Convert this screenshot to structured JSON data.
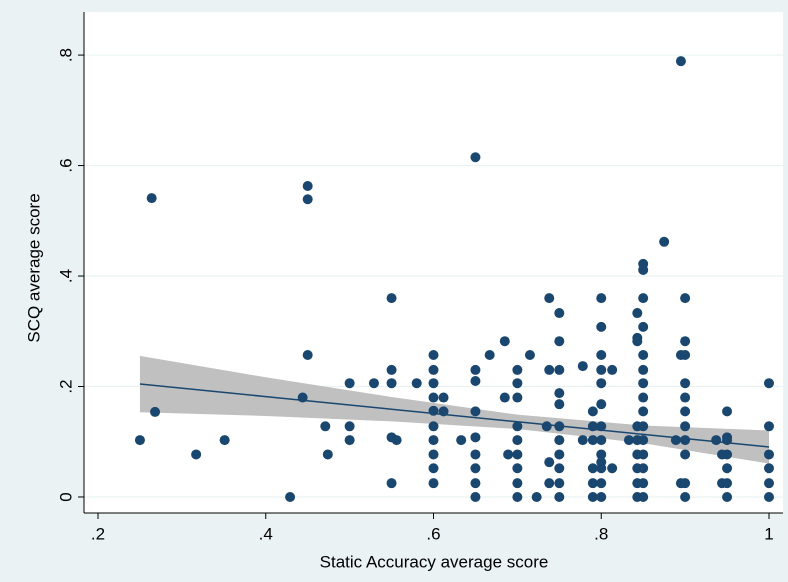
{
  "chart_data": {
    "type": "scatter",
    "x_label": "Static Accuracy average score",
    "y_label": "SCQ average score",
    "xlim": [
      0.1833,
      1.0167
    ],
    "ylim": [
      -0.029,
      0.878
    ],
    "xticks": [
      {
        "value": 0.2,
        "label": ".2"
      },
      {
        "value": 0.4,
        "label": ".4"
      },
      {
        "value": 0.6,
        "label": ".6"
      },
      {
        "value": 0.8,
        "label": ".8"
      },
      1
    ],
    "yticks": [
      0,
      {
        "value": 0.2,
        "label": ".2"
      },
      {
        "value": 0.4,
        "label": ".4"
      },
      {
        "value": 0.6,
        "label": ".6"
      },
      {
        "value": 0.8,
        "label": ".8"
      }
    ],
    "grid": true,
    "points": {
      "color": "#1a476f",
      "x": [
        0.25,
        0.264,
        0.268,
        0.317,
        0.351,
        0.429,
        0.444,
        0.45,
        0.45,
        0.45,
        0.471,
        0.474,
        0.5,
        0.5,
        0.5,
        0.529,
        0.55,
        0.55,
        0.55,
        0.55,
        0.55,
        0.556,
        0.58,
        0.6,
        0.6,
        0.6,
        0.6,
        0.6,
        0.6,
        0.6,
        0.6,
        0.6,
        0.6,
        0.612,
        0.612,
        0.633,
        0.65,
        0.65,
        0.65,
        0.65,
        0.65,
        0.65,
        0.65,
        0.65,
        0.65,
        0.667,
        0.685,
        0.685,
        0.689,
        0.7,
        0.7,
        0.7,
        0.7,
        0.7,
        0.7,
        0.7,
        0.7,
        0.7,
        0.715,
        0.723,
        0.735,
        0.738,
        0.738,
        0.738,
        0.738,
        0.75,
        0.75,
        0.75,
        0.75,
        0.75,
        0.75,
        0.75,
        0.75,
        0.75,
        0.75,
        0.75,
        0.778,
        0.778,
        0.79,
        0.79,
        0.79,
        0.79,
        0.79,
        0.79,
        0.8,
        0.8,
        0.8,
        0.8,
        0.8,
        0.8,
        0.8,
        0.8,
        0.8,
        0.8,
        0.8,
        0.8,
        0.8,
        0.813,
        0.813,
        0.833,
        0.843,
        0.843,
        0.843,
        0.843,
        0.843,
        0.843,
        0.843,
        0.843,
        0.843,
        0.85,
        0.85,
        0.85,
        0.85,
        0.85,
        0.85,
        0.85,
        0.85,
        0.85,
        0.85,
        0.85,
        0.85,
        0.85,
        0.85,
        0.85,
        0.875,
        0.889,
        0.895,
        0.895,
        0.895,
        0.9,
        0.9,
        0.9,
        0.9,
        0.9,
        0.9,
        0.9,
        0.9,
        0.9,
        0.9,
        0.9,
        0.937,
        0.944,
        0.944,
        0.95,
        0.95,
        0.95,
        0.95,
        0.95,
        0.95,
        0.95,
        1,
        1,
        1,
        1,
        1,
        1
      ],
      "y": [
        0.103,
        0.541,
        0.154,
        0.077,
        0.103,
        0,
        0.18,
        0.563,
        0.539,
        0.257,
        0.128,
        0.077,
        0.206,
        0.128,
        0.103,
        0.206,
        0.36,
        0.23,
        0.206,
        0.108,
        0.025,
        0.103,
        0.206,
        0.257,
        0.23,
        0.206,
        0.18,
        0.156,
        0.128,
        0.103,
        0.077,
        0.052,
        0.025,
        0.18,
        0.155,
        0.103,
        0.615,
        0.23,
        0.21,
        0.155,
        0.108,
        0.077,
        0.052,
        0.025,
        0,
        0.257,
        0.282,
        0.18,
        0.077,
        0.23,
        0.206,
        0.18,
        0.128,
        0.103,
        0.077,
        0.052,
        0.025,
        0,
        0.257,
        0,
        0.128,
        0.36,
        0.23,
        0.063,
        0.025,
        0.128,
        0.333,
        0.282,
        0.23,
        0.188,
        0.168,
        0.103,
        0.077,
        0.052,
        0.025,
        0,
        0.237,
        0.103,
        0.155,
        0.128,
        0.052,
        0.025,
        0,
        0.103,
        0.36,
        0.308,
        0.257,
        0.23,
        0.206,
        0.168,
        0.128,
        0.103,
        0.077,
        0.063,
        0.052,
        0.025,
        0,
        0.23,
        0.052,
        0.103,
        0.333,
        0.288,
        0.282,
        0.128,
        0.103,
        0.077,
        0.052,
        0.025,
        0,
        0.422,
        0.411,
        0.36,
        0.308,
        0.257,
        0.23,
        0.206,
        0.18,
        0.155,
        0.128,
        0.103,
        0.077,
        0.052,
        0.025,
        0,
        0.462,
        0.103,
        0.789,
        0.257,
        0.025,
        0.36,
        0.282,
        0.257,
        0.206,
        0.18,
        0.155,
        0.128,
        0.103,
        0.077,
        0.025,
        0,
        0.103,
        0.077,
        0.025,
        0.155,
        0.108,
        0.103,
        0.077,
        0.052,
        0.025,
        0,
        0.206,
        0.128,
        0.077,
        0.052,
        0.025,
        0
      ]
    },
    "fit": {
      "color": "#1a476f",
      "band_color": "#c0c0c0",
      "x": [
        0.25,
        0.4,
        0.55,
        0.7,
        0.85,
        1
      ],
      "y": [
        0.2045,
        0.1817,
        0.1589,
        0.1361,
        0.1133,
        0.0905
      ],
      "lower": [
        0.1535,
        0.1467,
        0.1369,
        0.1231,
        0.0973,
        0.0605
      ],
      "upper": [
        0.2555,
        0.2167,
        0.1809,
        0.1491,
        0.1293,
        0.1205
      ]
    }
  }
}
